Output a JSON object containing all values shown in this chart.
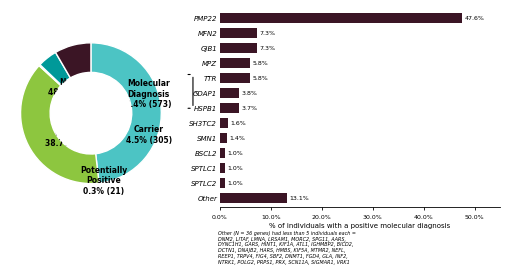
{
  "pie_values": [
    48.2,
    38.7,
    0.3,
    4.5,
    8.4
  ],
  "pie_colors": [
    "#4CC4C4",
    "#8DC63F",
    "#F5A623",
    "#009999",
    "#3B1525"
  ],
  "pie_labels_text": [
    "Negative\n48.2% (3,301)",
    "Uncertain\n38.7% (2,649)",
    "Potentially\nPositive\n0.3% (21)",
    "Carrier\n4.5% (305)",
    "Molecular\nDiagnosis\n8.4% (573)"
  ],
  "bar_labels": [
    "PMP22",
    "MFN2",
    "GJB1",
    "MPZ",
    "TTR",
    "GDAP1",
    "HSPB1",
    "SH3TC2",
    "SMN1",
    "BSCL2",
    "SPTLC1",
    "SPTLC2",
    "Other"
  ],
  "bar_values": [
    47.6,
    7.3,
    7.3,
    5.8,
    5.8,
    3.8,
    3.7,
    1.6,
    1.4,
    1.0,
    1.0,
    1.0,
    13.1
  ],
  "bar_color": "#3B1525",
  "xlabel": "% of individuals with a positive molecular diagnosis",
  "xlim": [
    0,
    55
  ],
  "xticks": [
    0.0,
    10.0,
    20.0,
    30.0,
    40.0,
    50.0
  ],
  "xtick_labels": [
    "0.0%",
    "10.0%",
    "20.0%",
    "30.0%",
    "40.0%",
    "50.0%"
  ],
  "footnote_line1": "Other (N = 36 genes) had less than 5 individuals each =",
  "footnote_line2": "DNM2, LITAF, LMNA, LRSAM1, MORC2, SPG11, AARS,",
  "footnote_line3": "DYNC1H1, GARS, HINT1, KIF1A, ATL1, IGHMBP2, BICD2,",
  "footnote_line4": "DCTN1, DNAJB2, HARS, HMBS, KIF5A, MTMR2, NEFL,",
  "footnote_line5": "REEP1, TRPV4, FIG4, SBF2, DNMT1, FGD4, GLA, INF2,",
  "footnote_line6": "NTRK1, POLG2, PRPS1, PRX, SCN11A, SIGMAR1, VRK1"
}
